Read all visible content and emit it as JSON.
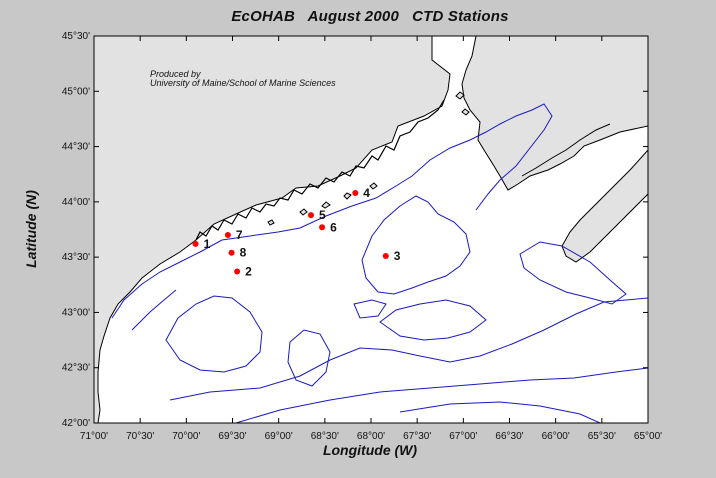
{
  "title": "EcOHAB   August 2000   CTD Stations",
  "xlabel": "Longitude (W)",
  "ylabel": "Latitude (N)",
  "credit": [
    "Produced by",
    "University of Maine/School of Marine Sciences"
  ],
  "colors": {
    "background": "#c8c8c8",
    "plot_area": "#ffffff",
    "land": "#e2e2e2",
    "coastline": "#000000",
    "bathymetry": "#0000cc",
    "station": "#ff0000"
  },
  "x_ticks": [
    "71°00'",
    "70°30'",
    "70°00'",
    "69°30'",
    "69°00'",
    "68°30'",
    "68°00'",
    "67°30'",
    "67°00'",
    "66°30'",
    "66°00'",
    "65°30'",
    "65°00'"
  ],
  "y_ticks": [
    "45°30'",
    "45°00'",
    "44°30'",
    "44°00'",
    "43°30'",
    "43°00'",
    "42°30'",
    "42°00'"
  ],
  "map_data": {
    "projection": "lon/lat",
    "lon_range_w": [
      71.0,
      65.0
    ],
    "lat_range_n": [
      42.0,
      45.5
    ],
    "stations": [
      {
        "label": "1",
        "lon_w": 69.9,
        "lat_n": 43.62
      },
      {
        "label": "2",
        "lon_w": 69.45,
        "lat_n": 43.37
      },
      {
        "label": "3",
        "lon_w": 67.84,
        "lat_n": 43.51
      },
      {
        "label": "4",
        "lon_w": 68.17,
        "lat_n": 44.08
      },
      {
        "label": "5",
        "lon_w": 68.65,
        "lat_n": 43.88
      },
      {
        "label": "6",
        "lon_w": 68.53,
        "lat_n": 43.77
      },
      {
        "label": "7",
        "lon_w": 69.55,
        "lat_n": 43.7
      },
      {
        "label": "8",
        "lon_w": 69.51,
        "lat_n": 43.54
      }
    ]
  }
}
